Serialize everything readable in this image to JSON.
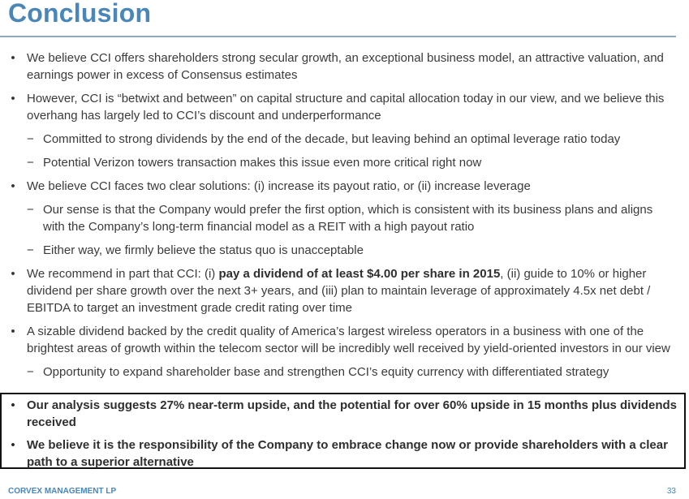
{
  "title": "Conclusion",
  "bullets": [
    {
      "text": "We believe CCI offers shareholders strong secular growth, an exceptional business model, an attractive valuation, and earnings power in excess of Consensus estimates"
    },
    {
      "text": "However, CCI is “betwixt and between” on capital structure and capital allocation today in our view, and we believe this overhang has largely led to CCI’s discount and underperformance"
    },
    {
      "text": "Committed to strong dividends by the end of the decade, but leaving behind an optimal leverage ratio today"
    },
    {
      "text": "Potential Verizon towers transaction makes this issue even more critical right now"
    },
    {
      "text": "We believe CCI faces two clear solutions: (i) increase its payout ratio, or (ii) increase leverage"
    },
    {
      "text": "Our sense is that the Company would prefer the first option, which is consistent with its business plans and aligns with the Company’s long-term financial model as a REIT with a high payout ratio"
    },
    {
      "text": "Either way, we firmly believe the status quo is unacceptable"
    },
    {
      "pre": "We recommend in part that CCI: (i) ",
      "bold": "pay a dividend of at least $4.00 per share in 2015",
      "post": ", (ii) guide to 10% or higher dividend per share growth over the next 3+ years, and (iii) plan to maintain leverage of approximately 4.5x net debt / EBITDA to target an investment grade credit rating over time"
    },
    {
      "text": "A sizable dividend backed by the credit quality of America’s largest wireless operators in a business with one of the brightest areas of growth within the telecom sector will be incredibly well received by yield-oriented investors in our view"
    },
    {
      "text": "Opportunity to expand shareholder base and strengthen CCI’s equity currency with differentiated strategy"
    }
  ],
  "highlight_bullets": [
    {
      "text": "Our analysis suggests 27% near-term upside, and the potential for over 60% upside in 15 months plus dividends received"
    },
    {
      "text": "We believe it is the responsibility of the Company to embrace change now or provide shareholders with a clear path to a superior alternative"
    }
  ],
  "markers": {
    "bullet": "•",
    "dash": "−"
  },
  "footer": {
    "firm": "CORVEX MANAGEMENT LP",
    "page": "33"
  }
}
